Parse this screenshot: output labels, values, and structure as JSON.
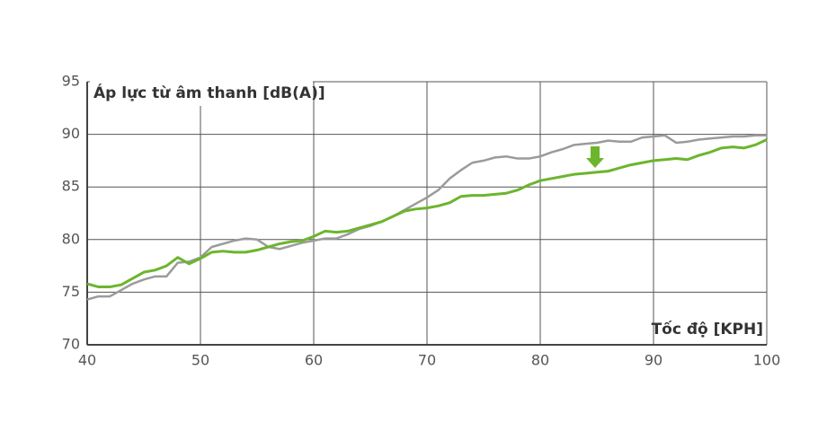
{
  "chart_data": {
    "type": "line",
    "y_label": "Áp lực từ âm thanh [dB(A)]",
    "x_label": "Tốc độ [KPH]",
    "x": [
      40,
      41,
      42,
      43,
      44,
      45,
      46,
      47,
      48,
      49,
      50,
      51,
      52,
      53,
      54,
      55,
      56,
      57,
      58,
      59,
      60,
      61,
      62,
      63,
      64,
      65,
      66,
      67,
      68,
      69,
      70,
      71,
      72,
      73,
      74,
      75,
      76,
      77,
      78,
      79,
      80,
      81,
      82,
      83,
      84,
      85,
      86,
      87,
      88,
      89,
      90,
      91,
      92,
      93,
      94,
      95,
      96,
      97,
      98,
      99,
      100
    ],
    "series": [
      {
        "color": "#9b9b9b",
        "values": [
          74.3,
          74.6,
          74.6,
          75.2,
          75.8,
          76.2,
          76.5,
          76.5,
          77.8,
          77.9,
          78.3,
          79.3,
          79.6,
          79.9,
          80.1,
          80.0,
          79.3,
          79.1,
          79.4,
          79.7,
          79.9,
          80.1,
          80.1,
          80.5,
          81.0,
          81.3,
          81.7,
          82.2,
          82.8,
          83.4,
          84.0,
          84.7,
          85.8,
          86.6,
          87.3,
          87.5,
          87.8,
          87.9,
          87.7,
          87.7,
          87.9,
          88.3,
          88.6,
          89.0,
          89.1,
          89.2,
          89.4,
          89.3,
          89.3,
          89.7,
          89.8,
          89.9,
          89.2,
          89.3,
          89.5,
          89.6,
          89.7,
          89.8,
          89.8,
          89.9,
          89.9
        ]
      },
      {
        "color": "#6cb52d",
        "values": [
          75.8,
          75.5,
          75.5,
          75.7,
          76.3,
          76.9,
          77.1,
          77.5,
          78.3,
          77.7,
          78.2,
          78.8,
          78.9,
          78.8,
          78.8,
          79.0,
          79.3,
          79.6,
          79.8,
          79.9,
          80.3,
          80.8,
          80.7,
          80.8,
          81.1,
          81.4,
          81.7,
          82.2,
          82.7,
          82.9,
          83.0,
          83.2,
          83.5,
          84.1,
          84.2,
          84.2,
          84.3,
          84.4,
          84.7,
          85.2,
          85.6,
          85.8,
          86.0,
          86.2,
          86.3,
          86.4,
          86.5,
          86.8,
          87.1,
          87.3,
          87.5,
          87.6,
          87.7,
          87.6,
          88.0,
          88.3,
          88.7,
          88.8,
          88.7,
          89.0,
          89.5
        ]
      }
    ],
    "xlim": [
      40,
      100
    ],
    "ylim": [
      70,
      95
    ],
    "xticks": [
      40,
      50,
      60,
      70,
      80,
      90,
      100
    ],
    "yticks": [
      70,
      75,
      80,
      85,
      90,
      95
    ],
    "grid": true
  }
}
